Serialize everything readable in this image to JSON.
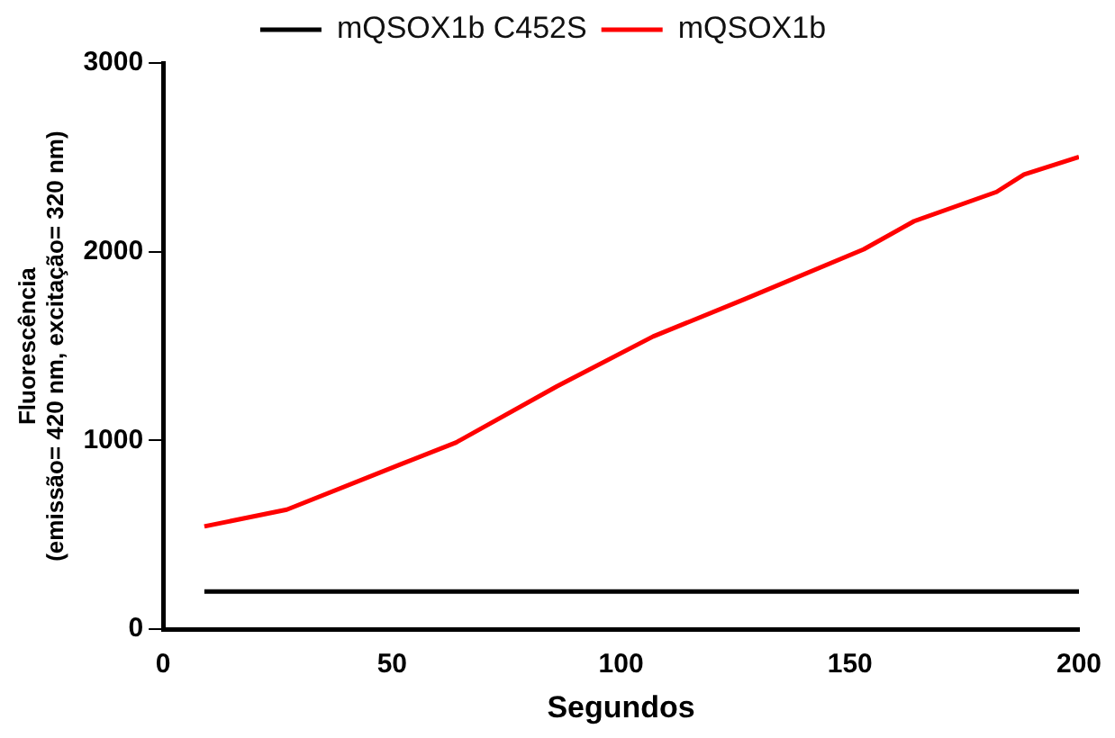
{
  "chart_data": {
    "type": "line",
    "xlabel": "Segundos",
    "ylabel": "Fluorescência\n(emissão= 420 nm, excitação= 320 nm)",
    "xlim": [
      0,
      200
    ],
    "xticks": [
      0,
      50,
      100,
      150,
      200
    ],
    "ylim": [
      0,
      3000
    ],
    "yticks": [
      0,
      1000,
      2000,
      3000
    ],
    "grid": false,
    "legend": "top",
    "marker": "none",
    "series": [
      {
        "name": "mQSOX1b C452S",
        "color": "#000000",
        "x": [
          9,
          200
        ],
        "values": [
          200,
          200
        ]
      },
      {
        "name": "mQSOX1b",
        "color": "#ff0000",
        "x": [
          9,
          27,
          52,
          64,
          86,
          107,
          127,
          153,
          164,
          182,
          188,
          200
        ],
        "values": [
          545,
          634,
          875,
          990,
          1287,
          1551,
          1749,
          2013,
          2162,
          2317,
          2409,
          2502
        ]
      }
    ]
  }
}
